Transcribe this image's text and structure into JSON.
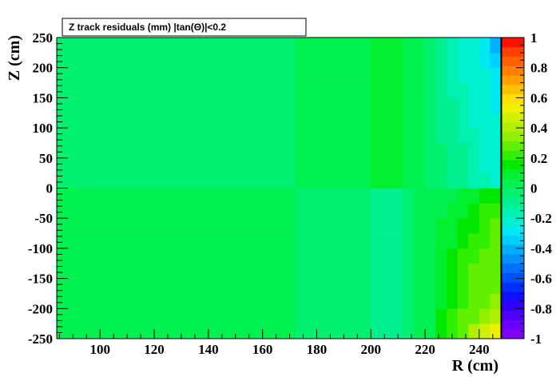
{
  "chart_data": {
    "type": "heatmap",
    "title": "Z track residuals (mm) |tan(Θ)|<0.2",
    "xlabel": "R (cm)",
    "ylabel": "Z (cm)",
    "xlim": [
      84,
      248
    ],
    "ylim": [
      -250,
      250
    ],
    "zlim": [
      -1,
      1
    ],
    "x_ticks": [
      100,
      120,
      140,
      160,
      180,
      200,
      220,
      240
    ],
    "y_ticks": [
      -250,
      -200,
      -150,
      -100,
      -50,
      0,
      50,
      100,
      150,
      200,
      250
    ],
    "z_ticks": [
      -1,
      -0.8,
      -0.6,
      -0.4,
      -0.2,
      0,
      0.2,
      0.4,
      0.6,
      0.8,
      1
    ],
    "x_tick_labels": [
      "100",
      "120",
      "140",
      "160",
      "180",
      "200",
      "220",
      "240"
    ],
    "y_tick_labels": [
      "-250",
      "-200",
      "-150",
      "-100",
      "-50",
      "0",
      "50",
      "100",
      "150",
      "200",
      "250"
    ],
    "z_tick_labels": [
      "-1",
      "-0.8",
      "-0.6",
      "-0.4",
      "-0.2",
      "0",
      "0.2",
      "0.4",
      "0.6",
      "0.8",
      "1"
    ],
    "x_bin_edges": [
      84,
      88,
      92,
      96,
      100,
      104,
      108,
      112,
      116,
      120,
      124,
      128,
      132,
      136,
      140,
      144,
      148,
      152,
      156,
      160,
      164,
      168,
      172,
      176,
      180,
      184,
      188,
      192,
      196,
      200,
      204,
      208,
      212,
      216,
      220,
      224,
      228,
      232,
      236,
      240,
      244,
      248
    ],
    "y_bin_edges": [
      -250,
      -225,
      -200,
      -175,
      -150,
      -125,
      -100,
      -75,
      -50,
      -25,
      0,
      25,
      50,
      75,
      100,
      125,
      150,
      175,
      200,
      225,
      250
    ],
    "z_values": [
      [
        0.05,
        0.05,
        0.05,
        0.05,
        0.05,
        0.05,
        0.05,
        0.05,
        0.05,
        0.05,
        0.05,
        0.05,
        0.05,
        0.05,
        0.05,
        0.05,
        0.05,
        0.05,
        0.05,
        0.05,
        0.05,
        0.05,
        -0.05,
        -0.05,
        -0.05,
        -0.05,
        -0.05,
        -0.05,
        -0.05,
        -0.1,
        -0.1,
        -0.1,
        -0.05,
        0.0,
        0.05,
        0.15,
        0.2,
        0.3,
        0.4,
        0.45,
        0.55
      ],
      [
        0.05,
        0.05,
        0.05,
        0.05,
        0.05,
        0.05,
        0.05,
        0.05,
        0.05,
        0.05,
        0.05,
        0.05,
        0.05,
        0.05,
        0.05,
        0.05,
        0.05,
        0.05,
        0.05,
        0.05,
        0.05,
        0.05,
        -0.05,
        -0.05,
        -0.05,
        -0.05,
        -0.05,
        -0.05,
        -0.05,
        -0.1,
        -0.1,
        -0.1,
        -0.05,
        0.0,
        0.05,
        0.15,
        0.2,
        0.25,
        0.3,
        0.35,
        0.4
      ],
      [
        0.05,
        0.05,
        0.05,
        0.05,
        0.05,
        0.05,
        0.05,
        0.05,
        0.05,
        0.05,
        0.05,
        0.05,
        0.05,
        0.05,
        0.05,
        0.05,
        0.05,
        0.05,
        0.05,
        0.05,
        0.05,
        0.05,
        -0.05,
        -0.05,
        -0.05,
        -0.05,
        -0.05,
        -0.05,
        -0.05,
        -0.1,
        -0.1,
        -0.1,
        -0.05,
        0.0,
        0.05,
        0.1,
        0.15,
        0.2,
        0.25,
        0.3,
        0.35
      ],
      [
        0.05,
        0.05,
        0.05,
        0.05,
        0.05,
        0.05,
        0.05,
        0.05,
        0.05,
        0.05,
        0.05,
        0.05,
        0.05,
        0.05,
        0.05,
        0.05,
        0.05,
        0.05,
        0.05,
        0.05,
        0.05,
        0.05,
        -0.05,
        -0.05,
        -0.05,
        -0.05,
        -0.05,
        -0.05,
        -0.05,
        -0.1,
        -0.1,
        -0.1,
        -0.05,
        0.0,
        0.05,
        0.1,
        0.15,
        0.2,
        0.25,
        0.3,
        0.3
      ],
      [
        0.05,
        0.05,
        0.05,
        0.05,
        0.05,
        0.05,
        0.05,
        0.05,
        0.05,
        0.05,
        0.05,
        0.05,
        0.05,
        0.05,
        0.05,
        0.05,
        0.05,
        0.05,
        0.05,
        0.05,
        0.05,
        0.05,
        -0.05,
        -0.05,
        -0.05,
        -0.05,
        -0.05,
        -0.05,
        -0.05,
        -0.1,
        -0.1,
        -0.1,
        -0.05,
        0.0,
        0.05,
        0.1,
        0.15,
        0.2,
        0.25,
        0.25,
        0.3
      ],
      [
        0.05,
        0.05,
        0.05,
        0.05,
        0.05,
        0.05,
        0.05,
        0.05,
        0.05,
        0.05,
        0.05,
        0.05,
        0.05,
        0.05,
        0.05,
        0.05,
        0.05,
        0.05,
        0.05,
        0.05,
        0.05,
        0.05,
        -0.05,
        -0.05,
        -0.05,
        -0.05,
        -0.05,
        -0.05,
        -0.05,
        -0.1,
        -0.1,
        -0.1,
        -0.05,
        0.0,
        0.05,
        0.1,
        0.15,
        0.2,
        0.2,
        0.25,
        0.25
      ],
      [
        0.05,
        0.05,
        0.05,
        0.05,
        0.05,
        0.05,
        0.05,
        0.05,
        0.05,
        0.05,
        0.05,
        0.05,
        0.05,
        0.05,
        0.05,
        0.05,
        0.05,
        0.05,
        0.05,
        0.05,
        0.05,
        0.05,
        -0.05,
        -0.05,
        -0.05,
        -0.05,
        -0.05,
        -0.05,
        -0.05,
        -0.1,
        -0.1,
        -0.1,
        -0.05,
        0.0,
        0.05,
        0.1,
        0.1,
        0.15,
        0.2,
        0.2,
        0.25
      ],
      [
        0.05,
        0.05,
        0.05,
        0.05,
        0.05,
        0.05,
        0.05,
        0.05,
        0.05,
        0.05,
        0.05,
        0.05,
        0.05,
        0.05,
        0.05,
        0.05,
        0.05,
        0.05,
        0.05,
        0.05,
        0.05,
        0.05,
        -0.05,
        -0.05,
        -0.05,
        -0.05,
        -0.05,
        -0.05,
        -0.05,
        -0.1,
        -0.1,
        -0.1,
        -0.05,
        0.0,
        0.05,
        0.1,
        0.1,
        0.15,
        0.15,
        0.2,
        0.25
      ],
      [
        0.05,
        0.05,
        0.05,
        0.05,
        0.05,
        0.05,
        0.05,
        0.05,
        0.05,
        0.05,
        0.05,
        0.05,
        0.05,
        0.05,
        0.05,
        0.05,
        0.05,
        0.05,
        0.05,
        0.05,
        0.05,
        0.05,
        -0.05,
        -0.05,
        -0.05,
        -0.05,
        -0.05,
        -0.05,
        -0.05,
        -0.1,
        -0.1,
        -0.1,
        -0.05,
        0.0,
        0.05,
        0.05,
        0.1,
        0.1,
        0.15,
        0.2,
        0.2
      ],
      [
        0.05,
        0.05,
        0.05,
        0.05,
        0.05,
        0.05,
        0.05,
        0.05,
        0.05,
        0.05,
        0.05,
        0.05,
        0.05,
        0.05,
        0.05,
        0.05,
        0.05,
        0.05,
        0.05,
        0.05,
        0.05,
        0.05,
        -0.05,
        -0.05,
        -0.05,
        -0.05,
        -0.05,
        -0.05,
        -0.05,
        -0.1,
        -0.1,
        -0.1,
        -0.05,
        0.0,
        0.05,
        0.05,
        0.05,
        0.1,
        0.1,
        0.15,
        0.15
      ],
      [
        -0.05,
        -0.05,
        -0.05,
        -0.05,
        -0.05,
        -0.05,
        -0.05,
        -0.05,
        -0.05,
        -0.05,
        -0.05,
        -0.05,
        -0.05,
        -0.05,
        -0.05,
        -0.05,
        -0.05,
        -0.05,
        -0.05,
        -0.05,
        -0.05,
        -0.05,
        0.05,
        0.05,
        0.05,
        0.05,
        0.05,
        0.05,
        0.05,
        0.1,
        0.1,
        0.1,
        0.05,
        0.0,
        -0.05,
        -0.05,
        -0.1,
        -0.1,
        -0.15,
        -0.15,
        -0.2
      ],
      [
        -0.05,
        -0.05,
        -0.05,
        -0.05,
        -0.05,
        -0.05,
        -0.05,
        -0.05,
        -0.05,
        -0.05,
        -0.05,
        -0.05,
        -0.05,
        -0.05,
        -0.05,
        -0.05,
        -0.05,
        -0.05,
        -0.05,
        -0.05,
        -0.05,
        -0.05,
        0.05,
        0.05,
        0.05,
        0.05,
        0.05,
        0.05,
        0.05,
        0.1,
        0.1,
        0.1,
        0.05,
        0.0,
        -0.05,
        -0.05,
        -0.1,
        -0.1,
        -0.15,
        -0.2,
        -0.2
      ],
      [
        -0.05,
        -0.05,
        -0.05,
        -0.05,
        -0.05,
        -0.05,
        -0.05,
        -0.05,
        -0.05,
        -0.05,
        -0.05,
        -0.05,
        -0.05,
        -0.05,
        -0.05,
        -0.05,
        -0.05,
        -0.05,
        -0.05,
        -0.05,
        -0.05,
        -0.05,
        0.05,
        0.05,
        0.05,
        0.05,
        0.05,
        0.05,
        0.05,
        0.1,
        0.1,
        0.1,
        0.05,
        0.0,
        -0.05,
        -0.05,
        -0.1,
        -0.1,
        -0.15,
        -0.2,
        -0.25
      ],
      [
        -0.05,
        -0.05,
        -0.05,
        -0.05,
        -0.05,
        -0.05,
        -0.05,
        -0.05,
        -0.05,
        -0.05,
        -0.05,
        -0.05,
        -0.05,
        -0.05,
        -0.05,
        -0.05,
        -0.05,
        -0.05,
        -0.05,
        -0.05,
        -0.05,
        -0.05,
        0.05,
        0.05,
        0.05,
        0.05,
        0.05,
        0.05,
        0.05,
        0.1,
        0.1,
        0.1,
        0.05,
        0.0,
        -0.05,
        -0.1,
        -0.1,
        -0.15,
        -0.15,
        -0.2,
        -0.25
      ],
      [
        -0.05,
        -0.05,
        -0.05,
        -0.05,
        -0.05,
        -0.05,
        -0.05,
        -0.05,
        -0.05,
        -0.05,
        -0.05,
        -0.05,
        -0.05,
        -0.05,
        -0.05,
        -0.05,
        -0.05,
        -0.05,
        -0.05,
        -0.05,
        -0.05,
        -0.05,
        0.05,
        0.05,
        0.05,
        0.05,
        0.05,
        0.05,
        0.05,
        0.1,
        0.1,
        0.1,
        0.05,
        0.0,
        -0.05,
        -0.1,
        -0.1,
        -0.15,
        -0.2,
        -0.2,
        -0.25
      ],
      [
        -0.05,
        -0.05,
        -0.05,
        -0.05,
        -0.05,
        -0.05,
        -0.05,
        -0.05,
        -0.05,
        -0.05,
        -0.05,
        -0.05,
        -0.05,
        -0.05,
        -0.05,
        -0.05,
        -0.05,
        -0.05,
        -0.05,
        -0.05,
        -0.05,
        -0.05,
        0.05,
        0.05,
        0.05,
        0.05,
        0.05,
        0.05,
        0.05,
        0.1,
        0.1,
        0.1,
        0.05,
        0.0,
        -0.05,
        -0.1,
        -0.1,
        -0.15,
        -0.2,
        -0.25,
        -0.3
      ],
      [
        -0.05,
        -0.05,
        -0.05,
        -0.05,
        -0.05,
        -0.05,
        -0.05,
        -0.05,
        -0.05,
        -0.05,
        -0.05,
        -0.05,
        -0.05,
        -0.05,
        -0.05,
        -0.05,
        -0.05,
        -0.05,
        -0.05,
        -0.05,
        -0.05,
        -0.05,
        0.05,
        0.05,
        0.05,
        0.05,
        0.05,
        0.05,
        0.05,
        0.1,
        0.1,
        0.1,
        0.05,
        0.0,
        -0.05,
        -0.1,
        -0.15,
        -0.15,
        -0.2,
        -0.25,
        -0.3
      ],
      [
        -0.05,
        -0.05,
        -0.05,
        -0.05,
        -0.05,
        -0.05,
        -0.05,
        -0.05,
        -0.05,
        -0.05,
        -0.05,
        -0.05,
        -0.05,
        -0.05,
        -0.05,
        -0.05,
        -0.05,
        -0.05,
        -0.05,
        -0.05,
        -0.05,
        -0.05,
        0.05,
        0.05,
        0.05,
        0.05,
        0.05,
        0.05,
        0.05,
        0.1,
        0.1,
        0.1,
        0.05,
        0.0,
        -0.05,
        -0.1,
        -0.15,
        -0.2,
        -0.2,
        -0.25,
        -0.3
      ],
      [
        -0.05,
        -0.05,
        -0.05,
        -0.05,
        -0.05,
        -0.05,
        -0.05,
        -0.05,
        -0.05,
        -0.05,
        -0.05,
        -0.05,
        -0.05,
        -0.05,
        -0.05,
        -0.05,
        -0.05,
        -0.05,
        -0.05,
        -0.05,
        -0.05,
        -0.05,
        0.05,
        0.05,
        0.05,
        0.05,
        0.05,
        0.05,
        0.05,
        0.1,
        0.1,
        0.1,
        0.05,
        0.0,
        -0.05,
        -0.1,
        -0.15,
        -0.2,
        -0.25,
        -0.3,
        -0.35
      ],
      [
        -0.05,
        -0.05,
        -0.05,
        -0.05,
        -0.05,
        -0.05,
        -0.05,
        -0.05,
        -0.05,
        -0.05,
        -0.05,
        -0.05,
        -0.05,
        -0.05,
        -0.05,
        -0.05,
        -0.05,
        -0.05,
        -0.05,
        -0.05,
        -0.05,
        -0.05,
        0.05,
        0.05,
        0.05,
        0.05,
        0.05,
        0.05,
        0.05,
        0.1,
        0.1,
        0.1,
        0.05,
        0.0,
        -0.05,
        -0.1,
        -0.15,
        -0.2,
        -0.25,
        -0.3,
        -0.4
      ]
    ],
    "palette": [
      "#8000ff",
      "#6a00ff",
      "#5000ff",
      "#3000ff",
      "#1010ff",
      "#0030ff",
      "#0050ff",
      "#0070ff",
      "#0090ff",
      "#00b0ff",
      "#00d0ff",
      "#00e8f0",
      "#00f0d0",
      "#00f0b0",
      "#00f090",
      "#00f070",
      "#00f050",
      "#00f030",
      "#00e800",
      "#30f000",
      "#60f000",
      "#90f000",
      "#b0f000",
      "#d0f000",
      "#f0f000",
      "#ffe000",
      "#ffc000",
      "#ffa000",
      "#ff8000",
      "#ff6000",
      "#ff4000",
      "#ff1000"
    ],
    "grid": false,
    "legend": "colorbar-right"
  }
}
